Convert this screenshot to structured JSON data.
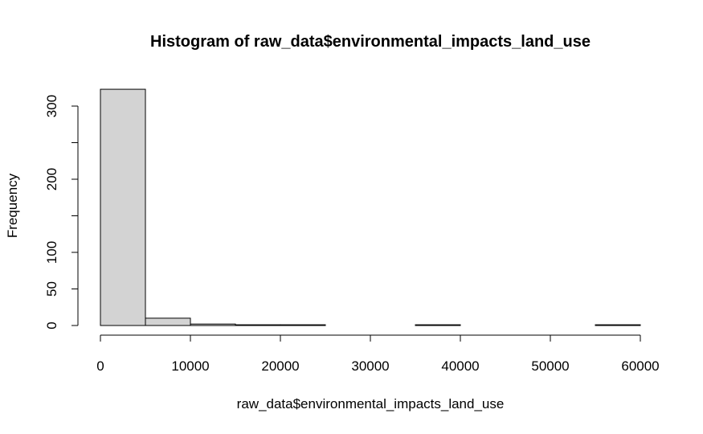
{
  "chart_data": {
    "type": "bar",
    "title": "Histogram of raw_data$environmental_impacts_land_use",
    "xlabel": "raw_data$environmental_impacts_land_use",
    "ylabel": "Frequency",
    "bins": [
      {
        "from": 0,
        "to": 5000,
        "count": 323
      },
      {
        "from": 5000,
        "to": 10000,
        "count": 10
      },
      {
        "from": 10000,
        "to": 15000,
        "count": 2
      },
      {
        "from": 15000,
        "to": 20000,
        "count": 1
      },
      {
        "from": 20000,
        "to": 25000,
        "count": 1
      },
      {
        "from": 25000,
        "to": 30000,
        "count": 0
      },
      {
        "from": 30000,
        "to": 35000,
        "count": 0
      },
      {
        "from": 35000,
        "to": 40000,
        "count": 1
      },
      {
        "from": 40000,
        "to": 45000,
        "count": 0
      },
      {
        "from": 45000,
        "to": 50000,
        "count": 0
      },
      {
        "from": 50000,
        "to": 55000,
        "count": 0
      },
      {
        "from": 55000,
        "to": 60000,
        "count": 1
      }
    ],
    "xlim": [
      0,
      60000
    ],
    "ylim": [
      0,
      330
    ],
    "x_ticks": [
      0,
      10000,
      20000,
      30000,
      40000,
      50000,
      60000
    ],
    "y_ticks": [
      0,
      50,
      100,
      150,
      200,
      250,
      300
    ],
    "y_tick_labels": [
      "0",
      "50",
      "100",
      "",
      "200",
      "",
      "300"
    ],
    "bar_color": "#d3d3d3",
    "grid": false,
    "legend": "none"
  }
}
